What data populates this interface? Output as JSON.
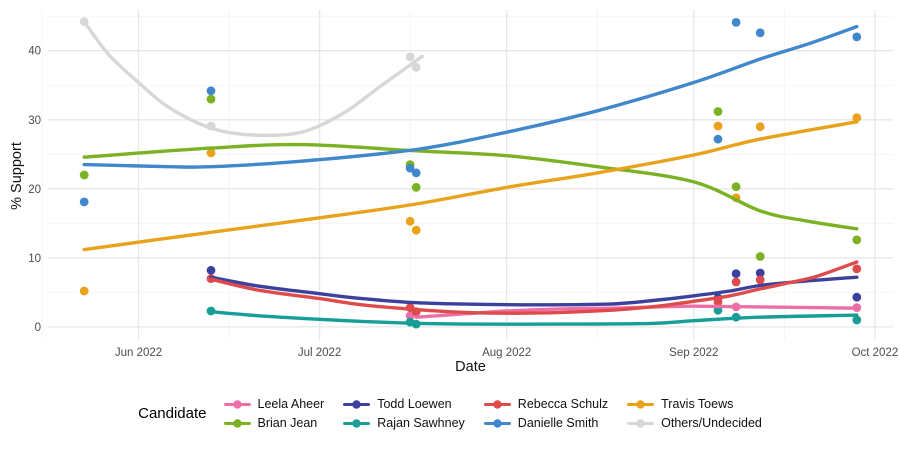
{
  "chart_data": {
    "type": "scatter",
    "smoothed_trend_lines": true,
    "xlabel": "Date",
    "ylabel": "% Support",
    "legend_title": "Candidate",
    "legend_position": "bottom",
    "grid": true,
    "x_domain": [
      "2022-05-17",
      "2022-10-04"
    ],
    "y_domain": [
      -1.9,
      45.9
    ],
    "x_ticks": [
      {
        "date": "2022-06-01",
        "label": "Jun 2022"
      },
      {
        "date": "2022-07-01",
        "label": "Jul 2022"
      },
      {
        "date": "2022-08-01",
        "label": "Aug 2022"
      },
      {
        "date": "2022-09-01",
        "label": "Sep 2022"
      },
      {
        "date": "2022-10-01",
        "label": "Oct 2022"
      }
    ],
    "x_minor_gridlines": [
      "2022-05-16",
      "2022-06-16",
      "2022-07-16",
      "2022-08-16",
      "2022-09-16"
    ],
    "y_ticks": [
      0,
      10,
      20,
      30,
      40
    ],
    "y_minor_gridlines": [
      5,
      15,
      25,
      35,
      45
    ],
    "legend_rows": [
      [
        "Leela Aheer",
        "Todd Loewen",
        "Rebecca Schulz",
        "Travis Toews"
      ],
      [
        "Brian Jean",
        "Rajan Sawhney",
        "Danielle Smith",
        "Others/Undecided"
      ]
    ],
    "series": [
      {
        "name": "Leela Aheer",
        "color": "#EE6FA8",
        "points": [
          [
            "2022-07-16",
            1.6
          ],
          [
            "2022-09-08",
            2.9
          ],
          [
            "2022-09-28",
            2.8
          ]
        ],
        "trend": [
          [
            "2022-07-17",
            1.4
          ],
          [
            "2022-07-25",
            1.9
          ],
          [
            "2022-08-01",
            2.3
          ],
          [
            "2022-08-10",
            2.6
          ],
          [
            "2022-08-18",
            2.7
          ],
          [
            "2022-08-26",
            2.9
          ],
          [
            "2022-09-01",
            3.0
          ],
          [
            "2022-09-12",
            2.9
          ],
          [
            "2022-09-28",
            2.7
          ]
        ]
      },
      {
        "name": "Brian Jean",
        "color": "#7BB224",
        "points": [
          [
            "2022-05-23",
            22.0
          ],
          [
            "2022-06-13",
            33.0
          ],
          [
            "2022-07-16",
            23.5
          ],
          [
            "2022-07-17",
            20.2
          ],
          [
            "2022-09-05",
            31.2
          ],
          [
            "2022-09-08",
            20.3
          ],
          [
            "2022-09-12",
            10.2
          ],
          [
            "2022-09-28",
            12.6
          ]
        ],
        "trend": [
          [
            "2022-05-23",
            24.6
          ],
          [
            "2022-06-13",
            25.9
          ],
          [
            "2022-06-28",
            26.4
          ],
          [
            "2022-07-17",
            25.5
          ],
          [
            "2022-08-01",
            24.8
          ],
          [
            "2022-08-16",
            23.2
          ],
          [
            "2022-09-01",
            21.0
          ],
          [
            "2022-09-12",
            16.8
          ],
          [
            "2022-09-20",
            15.3
          ],
          [
            "2022-09-28",
            14.2
          ]
        ]
      },
      {
        "name": "Todd Loewen",
        "color": "#3B419C",
        "points": [
          [
            "2022-06-13",
            8.2
          ],
          [
            "2022-09-05",
            4.2
          ],
          [
            "2022-09-08",
            7.7
          ],
          [
            "2022-09-12",
            7.8
          ],
          [
            "2022-09-28",
            4.3
          ]
        ],
        "trend": [
          [
            "2022-06-13",
            7.2
          ],
          [
            "2022-06-21",
            5.9
          ],
          [
            "2022-07-01",
            4.8
          ],
          [
            "2022-07-08",
            4.1
          ],
          [
            "2022-07-17",
            3.5
          ],
          [
            "2022-07-25",
            3.3
          ],
          [
            "2022-08-05",
            3.2
          ],
          [
            "2022-08-18",
            3.3
          ],
          [
            "2022-08-26",
            3.9
          ],
          [
            "2022-09-01",
            4.5
          ],
          [
            "2022-09-07",
            5.2
          ],
          [
            "2022-09-12",
            6.0
          ],
          [
            "2022-09-19",
            6.6
          ],
          [
            "2022-09-28",
            7.2
          ]
        ]
      },
      {
        "name": "Rajan Sawhney",
        "color": "#189E96",
        "points": [
          [
            "2022-06-13",
            2.3
          ],
          [
            "2022-07-16",
            0.7
          ],
          [
            "2022-07-17",
            0.4
          ],
          [
            "2022-09-05",
            2.4
          ],
          [
            "2022-09-08",
            1.4
          ],
          [
            "2022-09-28",
            1.0
          ]
        ],
        "trend": [
          [
            "2022-06-13",
            2.2
          ],
          [
            "2022-06-21",
            1.6
          ],
          [
            "2022-07-01",
            1.1
          ],
          [
            "2022-07-08",
            0.8
          ],
          [
            "2022-07-17",
            0.5
          ],
          [
            "2022-07-25",
            0.4
          ],
          [
            "2022-08-10",
            0.4
          ],
          [
            "2022-08-25",
            0.5
          ],
          [
            "2022-09-01",
            0.9
          ],
          [
            "2022-09-12",
            1.4
          ],
          [
            "2022-09-28",
            1.7
          ]
        ]
      },
      {
        "name": "Rebecca Schulz",
        "color": "#DE4B4B",
        "points": [
          [
            "2022-06-13",
            7.0
          ],
          [
            "2022-07-16",
            2.8
          ],
          [
            "2022-07-17",
            2.2
          ],
          [
            "2022-09-05",
            3.6
          ],
          [
            "2022-09-08",
            6.5
          ],
          [
            "2022-09-12",
            6.8
          ],
          [
            "2022-09-28",
            8.4
          ]
        ],
        "trend": [
          [
            "2022-06-13",
            6.9
          ],
          [
            "2022-06-21",
            5.3
          ],
          [
            "2022-07-01",
            4.1
          ],
          [
            "2022-07-08",
            3.2
          ],
          [
            "2022-07-17",
            2.5
          ],
          [
            "2022-07-25",
            2.1
          ],
          [
            "2022-08-05",
            2.0
          ],
          [
            "2022-08-18",
            2.4
          ],
          [
            "2022-08-26",
            3.0
          ],
          [
            "2022-09-01",
            3.7
          ],
          [
            "2022-09-07",
            4.5
          ],
          [
            "2022-09-12",
            5.5
          ],
          [
            "2022-09-19",
            6.8
          ],
          [
            "2022-09-22",
            7.5
          ],
          [
            "2022-09-28",
            9.4
          ]
        ]
      },
      {
        "name": "Danielle Smith",
        "color": "#4088CB",
        "points": [
          [
            "2022-05-23",
            18.1
          ],
          [
            "2022-06-13",
            34.2
          ],
          [
            "2022-07-16",
            23.0
          ],
          [
            "2022-07-17",
            22.3
          ],
          [
            "2022-09-05",
            27.2
          ],
          [
            "2022-09-08",
            44.1
          ],
          [
            "2022-09-12",
            42.6
          ],
          [
            "2022-09-28",
            42.0
          ]
        ],
        "trend": [
          [
            "2022-05-23",
            23.5
          ],
          [
            "2022-06-06",
            23.2
          ],
          [
            "2022-06-13",
            23.2
          ],
          [
            "2022-06-28",
            24.0
          ],
          [
            "2022-07-17",
            25.7
          ],
          [
            "2022-08-01",
            28.2
          ],
          [
            "2022-08-16",
            31.3
          ],
          [
            "2022-09-01",
            35.4
          ],
          [
            "2022-09-12",
            38.8
          ],
          [
            "2022-09-20",
            41.0
          ],
          [
            "2022-09-28",
            43.5
          ]
        ]
      },
      {
        "name": "Travis Toews",
        "color": "#E8A21B",
        "points": [
          [
            "2022-05-23",
            5.2
          ],
          [
            "2022-06-13",
            25.2
          ],
          [
            "2022-07-16",
            15.3
          ],
          [
            "2022-07-17",
            14.0
          ],
          [
            "2022-09-05",
            29.1
          ],
          [
            "2022-09-08",
            18.7
          ],
          [
            "2022-09-12",
            29.0
          ],
          [
            "2022-09-28",
            30.3
          ]
        ],
        "trend": [
          [
            "2022-05-23",
            11.2
          ],
          [
            "2022-06-13",
            13.7
          ],
          [
            "2022-07-01",
            15.8
          ],
          [
            "2022-07-17",
            17.8
          ],
          [
            "2022-08-01",
            20.2
          ],
          [
            "2022-08-16",
            22.3
          ],
          [
            "2022-09-01",
            24.9
          ],
          [
            "2022-09-12",
            27.2
          ],
          [
            "2022-09-28",
            29.7
          ]
        ]
      },
      {
        "name": "Others/Undecided",
        "color": "#D7D7D7",
        "points": [
          [
            "2022-05-23",
            44.2
          ],
          [
            "2022-06-13",
            29.1
          ],
          [
            "2022-07-16",
            39.1
          ],
          [
            "2022-07-17",
            37.6
          ]
        ],
        "trend": [
          [
            "2022-05-23",
            44.2
          ],
          [
            "2022-05-27",
            39.5
          ],
          [
            "2022-06-01",
            35.4
          ],
          [
            "2022-06-06",
            31.8
          ],
          [
            "2022-06-13",
            28.8
          ],
          [
            "2022-06-20",
            27.8
          ],
          [
            "2022-06-28",
            28.2
          ],
          [
            "2022-07-05",
            31.0
          ],
          [
            "2022-07-11",
            34.8
          ],
          [
            "2022-07-18",
            39.2
          ]
        ]
      }
    ],
    "style": {
      "background": "#FFFFFF",
      "grid_major_color": "#E7E7E7",
      "grid_minor_color": "#F3F3F3",
      "tick_label_color": "#4D4D4D",
      "axis_title_color": "#111111"
    }
  }
}
